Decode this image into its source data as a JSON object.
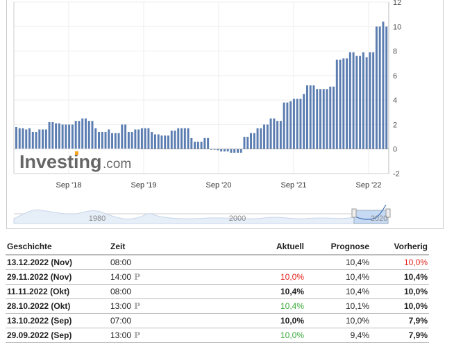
{
  "chart_data": {
    "type": "bar",
    "title": "",
    "xlabel": "",
    "ylabel": "",
    "ylim": [
      -2,
      12
    ],
    "yticks": [
      "-2",
      "0",
      "2",
      "4",
      "6",
      "8",
      "10",
      "12"
    ],
    "xticks": [
      "Sep '18",
      "Sep '19",
      "Sep '20",
      "Sep '21",
      "Sep '22"
    ],
    "bar_color": "#5b7db1",
    "grid": true,
    "values": [
      1.8,
      1.7,
      1.7,
      1.6,
      1.7,
      1.4,
      1.4,
      1.6,
      1.6,
      1.6,
      2.2,
      2.2,
      2.1,
      2.1,
      2.0,
      2.0,
      2.0,
      2.0,
      2.3,
      2.3,
      2.5,
      2.5,
      2.3,
      2.3,
      1.7,
      1.4,
      1.4,
      1.4,
      1.6,
      1.3,
      1.3,
      1.3,
      2.0,
      2.0,
      1.4,
      1.4,
      1.6,
      1.6,
      1.7,
      1.7,
      1.7,
      1.4,
      1.2,
      1.2,
      1.1,
      1.1,
      1.1,
      1.5,
      1.5,
      1.7,
      1.7,
      1.7,
      1.7,
      0.9,
      0.6,
      0.6,
      0.6,
      0.9,
      0.9,
      -0.05,
      -0.05,
      -0.1,
      -0.2,
      -0.2,
      -0.2,
      -0.3,
      -0.3,
      -0.3,
      -0.3,
      1.0,
      1.0,
      1.3,
      1.3,
      1.7,
      1.7,
      2.0,
      2.0,
      2.5,
      2.5,
      2.3,
      2.3,
      3.8,
      3.8,
      3.9,
      4.1,
      4.1,
      4.1,
      4.5,
      5.2,
      5.2,
      5.2,
      4.9,
      4.9,
      4.9,
      4.9,
      5.1,
      5.1,
      7.3,
      7.3,
      7.4,
      7.4,
      7.9,
      7.9,
      7.6,
      7.6,
      7.9,
      7.5,
      7.9,
      7.9,
      10.0,
      10.0,
      10.4,
      10.0
    ],
    "navigator_labels": [
      "1980",
      "2000",
      "2020"
    ]
  },
  "logo": "Investing.com",
  "table": {
    "headers": [
      "Geschichte",
      "Zeit",
      "Aktuell",
      "Prognose",
      "Vorherig"
    ],
    "rows": [
      {
        "date": "13.12.2022 (Nov)",
        "time": "08:00",
        "prelim": "",
        "actual": "",
        "actual_color": "",
        "forecast": "10,4%",
        "previous": "10,0%",
        "previous_color": "red"
      },
      {
        "date": "29.11.2022 (Nov)",
        "time": "14:00",
        "prelim": "P",
        "actual": "10,0%",
        "actual_color": "red",
        "forecast": "10,4%",
        "previous": "10,4%",
        "previous_color": ""
      },
      {
        "date": "11.11.2022 (Okt)",
        "time": "08:00",
        "prelim": "",
        "actual": "10,4%",
        "actual_color": "",
        "forecast": "10,4%",
        "previous": "10,0%",
        "previous_color": ""
      },
      {
        "date": "28.10.2022 (Okt)",
        "time": "13:00",
        "prelim": "P",
        "actual": "10,4%",
        "actual_color": "green",
        "forecast": "10,1%",
        "previous": "10,0%",
        "previous_color": ""
      },
      {
        "date": "13.10.2022 (Sep)",
        "time": "07:00",
        "prelim": "",
        "actual": "10,0%",
        "actual_color": "",
        "forecast": "10,0%",
        "previous": "7,9%",
        "previous_color": ""
      },
      {
        "date": "29.09.2022 (Sep)",
        "time": "13:00",
        "prelim": "P",
        "actual": "10,0%",
        "actual_color": "green",
        "forecast": "9,4%",
        "previous": "7,9%",
        "previous_color": ""
      }
    ]
  }
}
